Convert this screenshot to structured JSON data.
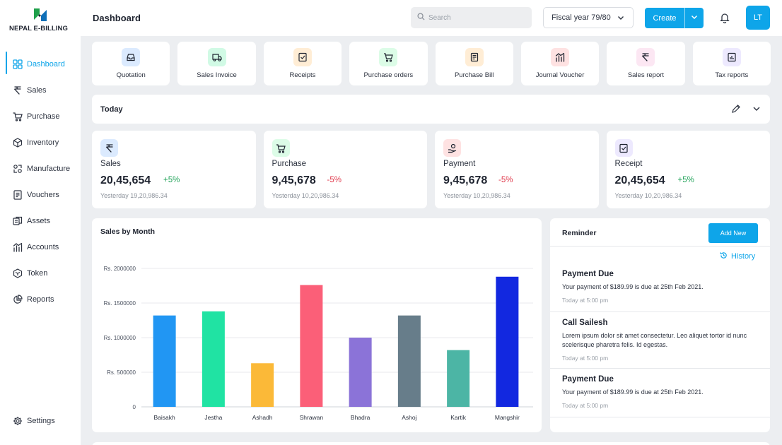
{
  "app": {
    "logo_text": "NEPAL E-BILLING"
  },
  "header": {
    "title": "Dashboard",
    "search_placeholder": "Search",
    "fiscal_year": "Fiscal year 79/80",
    "create_label": "Create",
    "avatar_initials": "LT"
  },
  "sidebar": {
    "items": [
      {
        "label": "Dashboard",
        "icon": "dashboard-icon",
        "active": true
      },
      {
        "label": "Sales",
        "icon": "rupee-icon"
      },
      {
        "label": "Purchase",
        "icon": "cart-icon"
      },
      {
        "label": "Inventory",
        "icon": "box-icon"
      },
      {
        "label": "Manufacture",
        "icon": "manufacture-icon"
      },
      {
        "label": "Vouchers",
        "icon": "voucher-icon"
      },
      {
        "label": "Assets",
        "icon": "assets-icon"
      },
      {
        "label": "Accounts",
        "icon": "accounts-icon"
      },
      {
        "label": "Token",
        "icon": "token-icon"
      },
      {
        "label": "Reports",
        "icon": "reports-icon"
      }
    ],
    "settings_label": "Settings"
  },
  "quick_actions": [
    {
      "label": "Quotation",
      "icon": "inbox-icon",
      "bg": "#dbeafe",
      "fg": "#1d4ed8"
    },
    {
      "label": "Sales Invoice",
      "icon": "truck-icon",
      "bg": "#d1fae5",
      "fg": "#0f766e"
    },
    {
      "label": "Receipts",
      "icon": "receipt-icon",
      "bg": "#ffedd5",
      "fg": "#9a3412"
    },
    {
      "label": "Purchase orders",
      "icon": "cart-icon",
      "bg": "#dcfce7",
      "fg": "#166534"
    },
    {
      "label": "Purchase Bill",
      "icon": "bill-icon",
      "bg": "#ffedd5",
      "fg": "#7c2d12"
    },
    {
      "label": "Journal Voucher",
      "icon": "chart-icon",
      "bg": "#fee2e2",
      "fg": "#374151"
    },
    {
      "label": "Sales report",
      "icon": "rupee-icon",
      "bg": "#fce7f3",
      "fg": "#374151"
    },
    {
      "label": "Tax reports",
      "icon": "tax-report-icon",
      "bg": "#ede9fe",
      "fg": "#374151"
    }
  ],
  "today": {
    "title": "Today"
  },
  "stats": [
    {
      "label": "Sales",
      "value": "20,45,654",
      "change": "+5%",
      "trend": "up",
      "yesterday": "Yesterday 19,20,986.34",
      "icon": "rupee-icon",
      "bg": "#dbeafe"
    },
    {
      "label": "Purchase",
      "value": "9,45,678",
      "change": "-5%",
      "trend": "down",
      "yesterday": "Yesterday 10,20,986.34",
      "icon": "cart-icon",
      "bg": "#dcfce7"
    },
    {
      "label": "Payment",
      "value": "9,45,678",
      "change": "-5%",
      "trend": "down",
      "yesterday": "Yesterday 10,20,986.34",
      "icon": "payment-icon",
      "bg": "#fee2e2"
    },
    {
      "label": "Receipt",
      "value": "20,45,654",
      "change": "+5%",
      "trend": "up",
      "yesterday": "Yesterday 10,20,986.34",
      "icon": "receipt-icon",
      "bg": "#ede9fe"
    }
  ],
  "chart_data": {
    "type": "bar",
    "title": "Sales by Month",
    "categories": [
      "Baisakh",
      "Jestha",
      "Ashadh",
      "Shrawan",
      "Bhadra",
      "Ashoj",
      "Kartik",
      "Mangshir"
    ],
    "values": [
      1320000,
      1380000,
      630000,
      1760000,
      1000000,
      1320000,
      820000,
      1880000
    ],
    "colors": [
      "#2196f3",
      "#20e3a3",
      "#fbb938",
      "#fb5f78",
      "#8b73d8",
      "#677d8a",
      "#4cb5a5",
      "#1228e0"
    ],
    "ylim": [
      0,
      2000000
    ],
    "yticks": [
      0,
      500000,
      1000000,
      1500000,
      2000000
    ],
    "ytick_labels": [
      "0",
      "Rs. 500000",
      "Rs. 1000000",
      "Rs. 1500000",
      "Rs. 2000000"
    ],
    "grid": true
  },
  "reminder": {
    "title": "Reminder",
    "add_label": "Add New",
    "history_label": "History",
    "items": [
      {
        "title": "Payment Due",
        "desc": "Your payment of $189.99 is due at 25th Feb 2021.",
        "time": "Today at 5:00 pm"
      },
      {
        "title": "Call Sailesh",
        "desc": "Lorem ipsum dolor sit amet consectetur. Leo aliquet tortor id nunc scelerisque pharetra felis. Id egestas.",
        "time": "Today at 5:00 pm"
      },
      {
        "title": "Payment Due",
        "desc": "Your payment of $189.99 is due at 25th Feb 2021.",
        "time": "Today at 5:00 pm"
      }
    ]
  }
}
